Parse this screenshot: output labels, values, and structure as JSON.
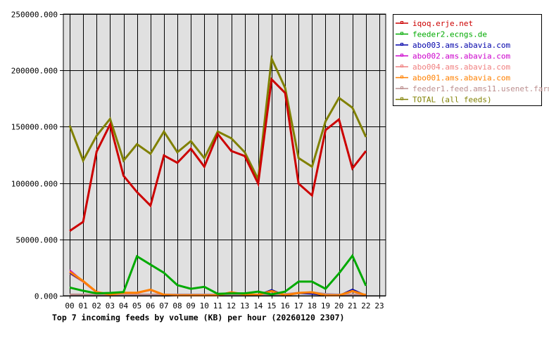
{
  "chart_data": {
    "type": "line",
    "title": "Top 7 incoming feeds by volume (KB) per hour (20260120 2307)",
    "xlabel": "",
    "ylabel": "",
    "ylim": [
      0,
      250000
    ],
    "yticks": [
      0,
      50000,
      100000,
      150000,
      200000,
      250000
    ],
    "ytick_labels": [
      "0.000",
      "50000.000",
      "100000.000",
      "150000.000",
      "200000.000",
      "250000.000"
    ],
    "grid": true,
    "legend_position": "right",
    "categories": [
      "00",
      "01",
      "02",
      "03",
      "04",
      "05",
      "06",
      "07",
      "08",
      "09",
      "10",
      "11",
      "12",
      "13",
      "14",
      "15",
      "16",
      "17",
      "18",
      "19",
      "20",
      "21",
      "22",
      "23"
    ],
    "series": [
      {
        "name": "iqoq.erje.net",
        "color": "#cc0000",
        "values": [
          57500,
          65500,
          128000,
          152000,
          106500,
          92000,
          80000,
          124500,
          118000,
          130500,
          114500,
          143500,
          128500,
          124000,
          99500,
          192000,
          180000,
          99500,
          89000,
          147000,
          156500,
          113000,
          128500
        ]
      },
      {
        "name": "feeder2.ecngs.de",
        "color": "#00aa00",
        "values": [
          7300,
          4400,
          2100,
          2500,
          3300,
          35000,
          27600,
          20400,
          9400,
          6200,
          7900,
          1700,
          2100,
          2100,
          3700,
          1200,
          3700,
          12500,
          12500,
          6200,
          19800,
          35500,
          8900
        ]
      },
      {
        "name": "abo003.ams.abavia.com",
        "color": "#0000aa",
        "values": [
          20000,
          12500,
          3000,
          1000,
          2500,
          2500,
          5000,
          800,
          300,
          300,
          300,
          300,
          3000,
          1000,
          900,
          5400,
          500,
          2000,
          1500,
          300,
          300,
          5800,
          500
        ]
      },
      {
        "name": "abo002.ams.abavia.com",
        "color": "#cc00cc",
        "values": [
          23000,
          13000,
          3200,
          1200,
          2700,
          2700,
          5400,
          900,
          300,
          300,
          300,
          300,
          3100,
          1200,
          900,
          4200,
          500,
          2500,
          3000,
          300,
          300,
          4500,
          500
        ]
      },
      {
        "name": "abo004.ams.abavia.com",
        "color": "#f08080",
        "values": [
          20000,
          12500,
          3000,
          1000,
          2500,
          2500,
          5200,
          800,
          300,
          300,
          300,
          300,
          2900,
          1000,
          800,
          3900,
          500,
          2400,
          2900,
          300,
          300,
          4000,
          400
        ]
      },
      {
        "name": "abo001.ams.abavia.com",
        "color": "#ff8000",
        "values": [
          21400,
          13100,
          3300,
          1200,
          2700,
          2700,
          5400,
          900,
          300,
          300,
          300,
          300,
          3100,
          1200,
          900,
          4200,
          500,
          2500,
          3100,
          300,
          300,
          4200,
          500
        ]
      },
      {
        "name": "feeder1.feed.ams11.usenet.farm",
        "color": "#bc8f8f",
        "values": [
          1000,
          1000,
          1000,
          1000,
          1000,
          1000,
          1000,
          1000,
          1000,
          1000,
          1000,
          1000,
          1000,
          1000,
          1000,
          1000,
          1500,
          2500,
          3000,
          1500,
          1000,
          1000,
          1000
        ]
      },
      {
        "name": "TOTAL (all feeds)",
        "color": "#808000",
        "values": [
          151000,
          120000,
          142000,
          157000,
          120000,
          134500,
          126000,
          145700,
          127400,
          137200,
          122200,
          145700,
          139800,
          127400,
          103500,
          210500,
          184500,
          122200,
          114500,
          154800,
          175600,
          166900,
          140900
        ]
      }
    ]
  }
}
